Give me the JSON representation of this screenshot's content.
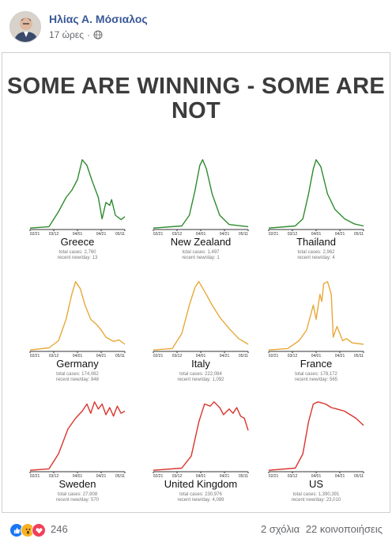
{
  "post": {
    "author": "Ηλίας Α. Μόσιαλος",
    "time": "17 ώρες",
    "privacy_icon": "globe-icon"
  },
  "image": {
    "headline": "SOME ARE WINNING - SOME ARE NOT",
    "colors": {
      "winning": "#2e8b2e",
      "middle": "#e8a838",
      "losing": "#d9342b"
    },
    "x_ticks": [
      "02/21",
      "03/12",
      "04/01",
      "04/21",
      "05/11"
    ],
    "panels": [
      {
        "country": "Greece",
        "total": "total cases: 2,760",
        "recent": "recent new/day: 13"
      },
      {
        "country": "New Zealand",
        "total": "total cases: 1,497",
        "recent": "recent new/day: 1"
      },
      {
        "country": "Thailand",
        "total": "total cases: 2,962",
        "recent": "recent new/day: 4"
      },
      {
        "country": "Germany",
        "total": "total cases: 174,082",
        "recent": "recent new/day: 848"
      },
      {
        "country": "Italy",
        "total": "total cases: 222,084",
        "recent": "recent new/day: 1,092"
      },
      {
        "country": "France",
        "total": "total cases: 178,172",
        "recent": "recent new/day: 565"
      },
      {
        "country": "Sweden",
        "total": "total cases: 27,908",
        "recent": "recent new/day: 570"
      },
      {
        "country": "United Kingdom",
        "total": "total cases: 230,976",
        "recent": "recent new/day: 4,089"
      },
      {
        "country": "US",
        "total": "total cases: 1,390,391",
        "recent": "recent new/day: 23,010"
      }
    ]
  },
  "footer": {
    "reaction_icons": [
      "like-icon",
      "wow-icon",
      "love-icon"
    ],
    "reaction_count": "246",
    "comments": "2 σχόλια",
    "shares": "22 κοινοποιήσεις"
  }
}
